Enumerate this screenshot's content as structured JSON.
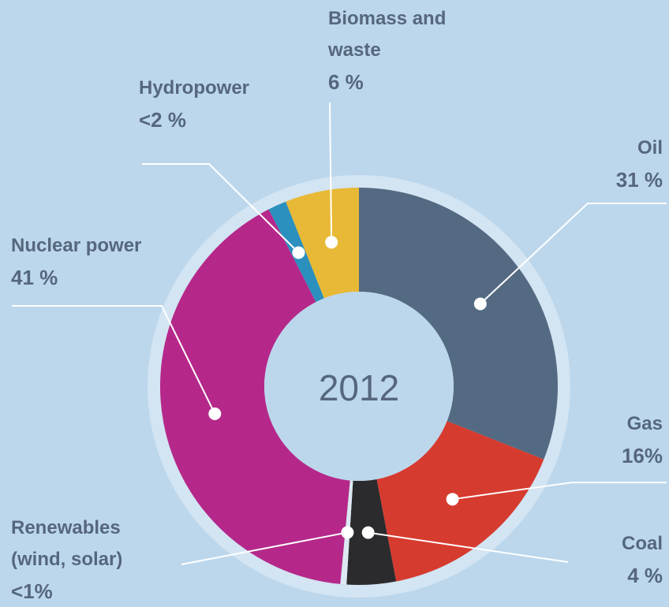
{
  "chart_data": {
    "type": "donut",
    "title": "2012",
    "categories": [
      "Oil",
      "Gas",
      "Coal",
      "Renewables (wind, solar)",
      "Nuclear power",
      "Hydropower",
      "Biomass and waste"
    ],
    "values": [
      31,
      16,
      4,
      0.5,
      41,
      1.5,
      6
    ],
    "value_labels": [
      "31 %",
      "16%",
      "4 %",
      "<1%",
      "41 %",
      "<2 %",
      "6 %"
    ],
    "colors": [
      "#546a82",
      "#d63b2f",
      "#2b2b2d",
      "#dce8f2",
      "#b5288a",
      "#2b90bd",
      "#e8b936"
    ]
  }
}
